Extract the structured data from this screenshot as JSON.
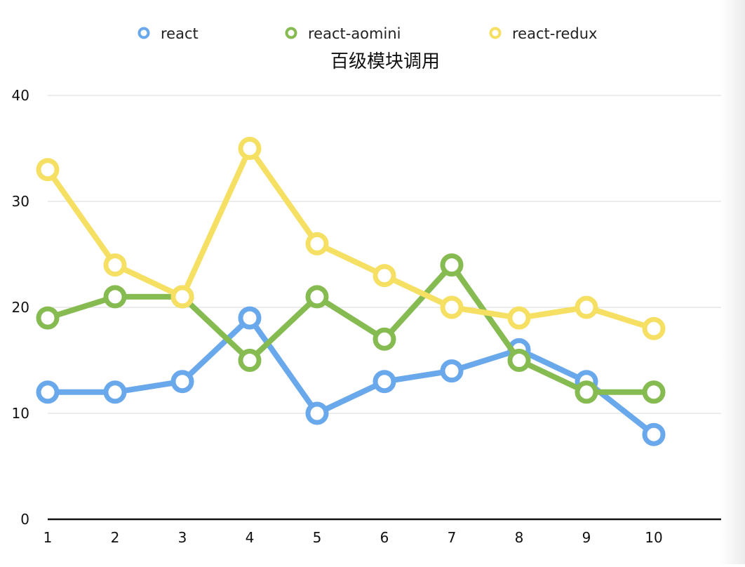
{
  "chart_data": {
    "type": "line",
    "title": "百级模块调用",
    "xlabel": "",
    "ylabel": "",
    "x": [
      1,
      2,
      3,
      4,
      5,
      6,
      7,
      8,
      9,
      10
    ],
    "xlim": [
      1,
      11
    ],
    "ylim": [
      0,
      40
    ],
    "y_ticks": [
      0,
      10,
      20,
      30,
      40
    ],
    "grid": true,
    "legend_position": "top",
    "series": [
      {
        "name": "react",
        "color": "#6aa8ec",
        "values": [
          12,
          12,
          13,
          19,
          10,
          13,
          14,
          16,
          13,
          8
        ]
      },
      {
        "name": "react-aomini",
        "color": "#86bb52",
        "values": [
          19,
          21,
          21,
          15,
          21,
          17,
          24,
          15,
          12,
          12
        ]
      },
      {
        "name": "react-redux",
        "color": "#f5e064",
        "values": [
          33,
          24,
          21,
          35,
          26,
          23,
          20,
          19,
          20,
          18
        ]
      }
    ]
  }
}
